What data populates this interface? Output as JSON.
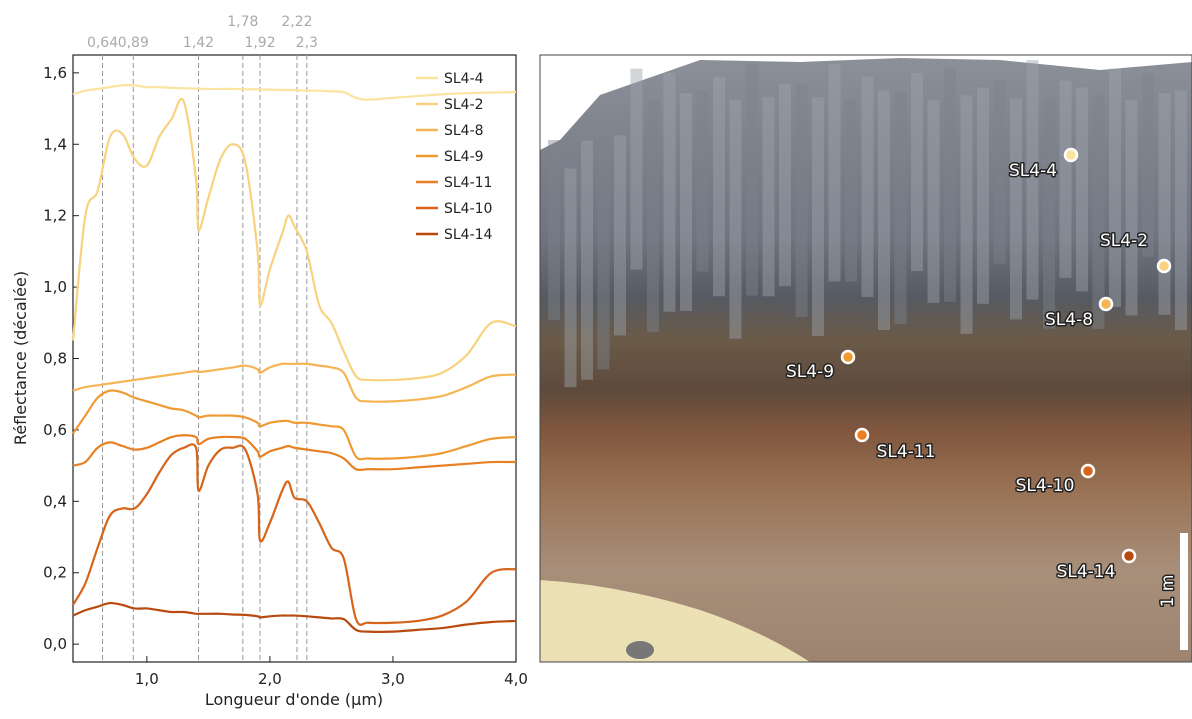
{
  "chart_data": {
    "type": "line",
    "xlabel": "Longueur d'onde (µm)",
    "ylabel": "Réflectance (décalée)",
    "xlim": [
      0.4,
      4.0
    ],
    "ylim": [
      -0.05,
      1.65
    ],
    "xticks": [
      {
        "value": 1,
        "label": "1,0"
      },
      {
        "value": 2,
        "label": "2,0"
      },
      {
        "value": 3,
        "label": "3,0"
      },
      {
        "value": 4,
        "label": "4,0"
      }
    ],
    "yticks": [
      {
        "value": 0,
        "label": "0,0"
      },
      {
        "value": 0.2,
        "label": "0,2"
      },
      {
        "value": 0.4,
        "label": "0,4"
      },
      {
        "value": 0.6,
        "label": "0,6"
      },
      {
        "value": 0.8,
        "label": "0,8"
      },
      {
        "value": 1.0,
        "label": "1,0"
      },
      {
        "value": 1.2,
        "label": "1,2"
      },
      {
        "value": 1.4,
        "label": "1,4"
      },
      {
        "value": 1.6,
        "label": "1,6"
      }
    ],
    "reference_lines": [
      {
        "value": 0.64,
        "label": "0,64"
      },
      {
        "value": 0.89,
        "label": "0,89"
      },
      {
        "value": 1.42,
        "label": "1,42"
      },
      {
        "value": 1.78,
        "label": "1,78"
      },
      {
        "value": 1.92,
        "label": "1,92"
      },
      {
        "value": 2.22,
        "label": "2,22"
      },
      {
        "value": 2.3,
        "label": "2,3"
      }
    ],
    "legend": "upper right",
    "x": [
      0.4,
      0.5,
      0.6,
      0.7,
      0.8,
      0.9,
      1.0,
      1.1,
      1.2,
      1.3,
      1.4,
      1.42,
      1.5,
      1.6,
      1.7,
      1.8,
      1.9,
      1.92,
      2.0,
      2.1,
      2.15,
      2.2,
      2.3,
      2.4,
      2.5,
      2.6,
      2.7,
      2.8,
      3.0,
      3.2,
      3.4,
      3.6,
      3.8,
      4.0
    ],
    "series": [
      {
        "name": "SL4-4",
        "color": "#fbe3a0",
        "values": [
          1.54,
          1.55,
          1.555,
          1.56,
          1.565,
          1.565,
          1.56,
          1.56,
          1.558,
          1.557,
          1.556,
          1.556,
          1.555,
          1.555,
          1.555,
          1.554,
          1.554,
          1.553,
          1.553,
          1.552,
          1.552,
          1.552,
          1.55,
          1.55,
          1.548,
          1.546,
          1.53,
          1.525,
          1.53,
          1.535,
          1.54,
          1.543,
          1.545,
          1.546
        ]
      },
      {
        "name": "SL4-2",
        "color": "#f8d27f",
        "values": [
          0.85,
          1.2,
          1.27,
          1.42,
          1.43,
          1.36,
          1.34,
          1.42,
          1.47,
          1.52,
          1.3,
          1.16,
          1.25,
          1.36,
          1.4,
          1.35,
          1.1,
          0.95,
          1.05,
          1.15,
          1.2,
          1.17,
          1.1,
          0.95,
          0.9,
          0.82,
          0.75,
          0.74,
          0.74,
          0.745,
          0.76,
          0.81,
          0.9,
          0.89
        ]
      },
      {
        "name": "SL4-8",
        "color": "#f5b554",
        "values": [
          0.71,
          0.72,
          0.725,
          0.73,
          0.735,
          0.74,
          0.745,
          0.75,
          0.755,
          0.76,
          0.765,
          0.762,
          0.765,
          0.77,
          0.775,
          0.78,
          0.77,
          0.76,
          0.775,
          0.785,
          0.785,
          0.785,
          0.785,
          0.78,
          0.775,
          0.76,
          0.69,
          0.68,
          0.68,
          0.685,
          0.695,
          0.72,
          0.75,
          0.755
        ]
      },
      {
        "name": "SL4-9",
        "color": "#f09a34",
        "values": [
          0.59,
          0.64,
          0.69,
          0.71,
          0.705,
          0.69,
          0.68,
          0.67,
          0.66,
          0.655,
          0.64,
          0.635,
          0.64,
          0.64,
          0.64,
          0.635,
          0.62,
          0.61,
          0.62,
          0.625,
          0.625,
          0.62,
          0.62,
          0.615,
          0.61,
          0.6,
          0.525,
          0.52,
          0.52,
          0.525,
          0.535,
          0.555,
          0.575,
          0.58
        ]
      },
      {
        "name": "SL4-11",
        "color": "#e87f22",
        "values": [
          0.5,
          0.51,
          0.55,
          0.565,
          0.555,
          0.545,
          0.55,
          0.565,
          0.58,
          0.585,
          0.58,
          0.56,
          0.575,
          0.58,
          0.58,
          0.575,
          0.54,
          0.525,
          0.54,
          0.55,
          0.555,
          0.55,
          0.545,
          0.54,
          0.535,
          0.52,
          0.49,
          0.49,
          0.49,
          0.495,
          0.5,
          0.505,
          0.51,
          0.51
        ]
      },
      {
        "name": "SL4-10",
        "color": "#d6641a",
        "values": [
          0.11,
          0.17,
          0.27,
          0.36,
          0.38,
          0.38,
          0.42,
          0.48,
          0.53,
          0.55,
          0.55,
          0.43,
          0.5,
          0.545,
          0.55,
          0.545,
          0.42,
          0.29,
          0.34,
          0.43,
          0.455,
          0.41,
          0.4,
          0.34,
          0.27,
          0.24,
          0.07,
          0.06,
          0.06,
          0.065,
          0.08,
          0.12,
          0.2,
          0.21
        ]
      },
      {
        "name": "SL4-14",
        "color": "#b84a10",
        "values": [
          0.08,
          0.095,
          0.105,
          0.115,
          0.11,
          0.1,
          0.1,
          0.095,
          0.09,
          0.09,
          0.085,
          0.085,
          0.085,
          0.085,
          0.083,
          0.082,
          0.078,
          0.075,
          0.078,
          0.08,
          0.08,
          0.08,
          0.078,
          0.075,
          0.072,
          0.07,
          0.04,
          0.035,
          0.035,
          0.04,
          0.045,
          0.055,
          0.062,
          0.065
        ]
      }
    ]
  },
  "photo": {
    "samples": [
      "SL4-4",
      "SL4-2",
      "SL4-8",
      "SL4-9",
      "SL4-11",
      "SL4-10",
      "SL4-14"
    ],
    "scale_label": "1 m"
  }
}
